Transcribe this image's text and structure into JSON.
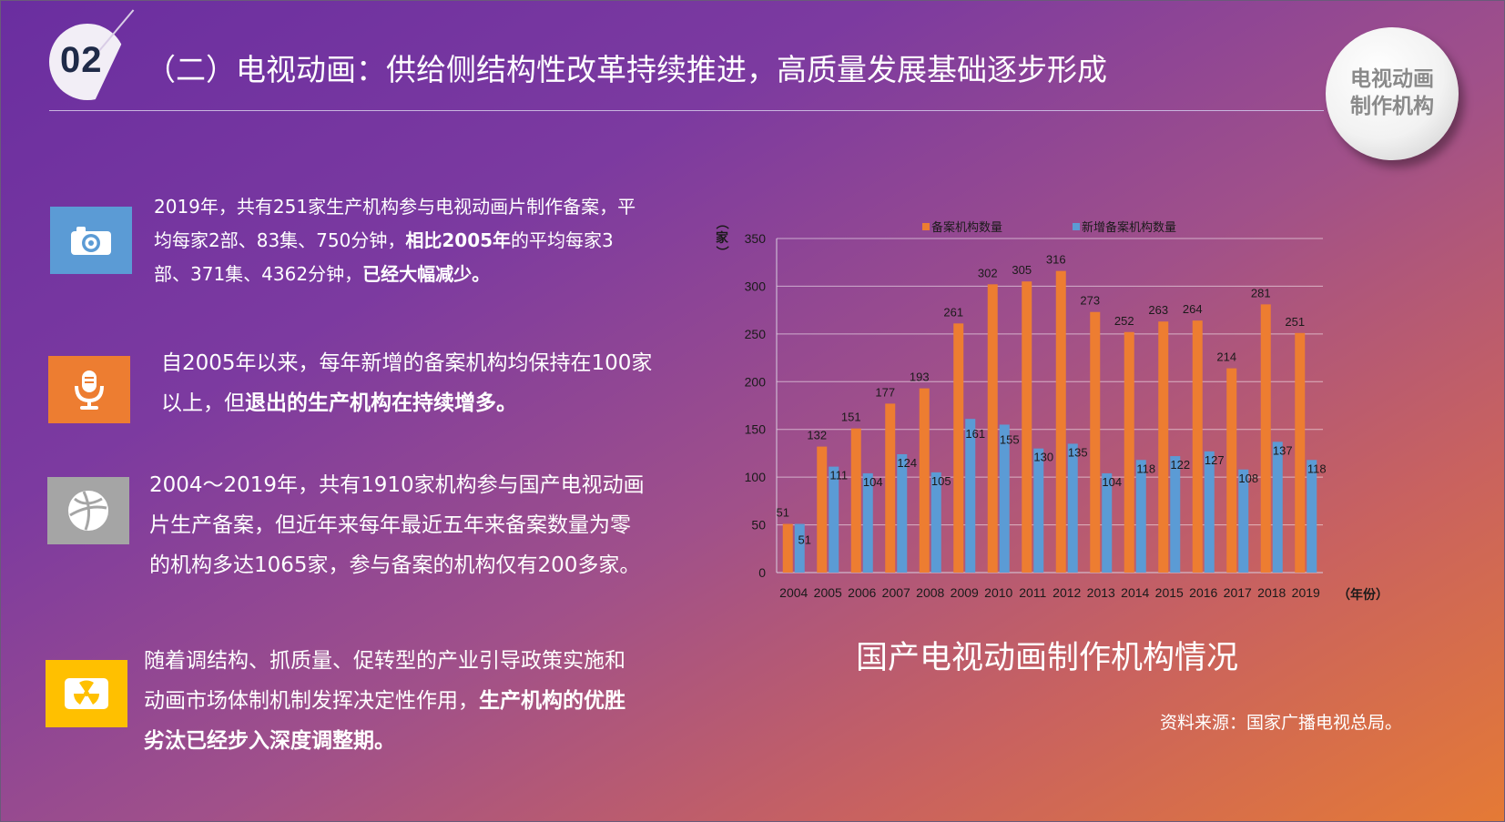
{
  "header": {
    "section_number": "02",
    "title": "（二）电视动画：供给侧结构性改革持续推进，高质量发展基础逐步形成",
    "corner_badge_line1": "电视动画",
    "corner_badge_line2": "制作机构"
  },
  "blocks": [
    {
      "icon": "camera-icon",
      "icon_color": "#5b9bd5",
      "seg1": "2019年，共有251家生产机构参与电视动画片制作备案，平均每家2部、83集、750分钟，",
      "seg2": "相比2005年",
      "seg3": "的平均每家3部、371集、4362分钟，",
      "seg4": "已经大幅减少。"
    },
    {
      "icon": "microphone-icon",
      "icon_color": "#ed7d31",
      "seg1": "自2005年以来，每年新增的备案机构均保持在100家以上，但",
      "seg2": "退出的生产机构在持续增多。"
    },
    {
      "icon": "basketball-icon",
      "icon_color": "#a5a5a5",
      "seg1": "2004～2019年，共有1910家机构参与国产电视动画片生产备案，但近年来每年最近五年来备案数量为零的机构多达1065家，参与备案的机构仅有200多家。"
    },
    {
      "icon": "radiation-icon",
      "icon_color": "#ffc000",
      "seg1": "随着调结构、抓质量、促转型的产业引导政策实施和动画市场体制机制发挥决定性作用，",
      "seg2": "生产机构的优胜劣汰已经步入深度调整期。"
    }
  ],
  "chart_title": "国产电视动画制作机构情况",
  "source": "资料来源：国家广播电视总局。",
  "chart_data": {
    "type": "bar",
    "categories": [
      "2004",
      "2005",
      "2006",
      "2007",
      "2008",
      "2009",
      "2010",
      "2011",
      "2012",
      "2013",
      "2014",
      "2015",
      "2016",
      "2017",
      "2018",
      "2019"
    ],
    "series": [
      {
        "name": "备案机构数量",
        "color": "#ed7d31",
        "values": [
          51,
          132,
          151,
          177,
          193,
          261,
          302,
          305,
          316,
          273,
          252,
          263,
          264,
          214,
          281,
          251
        ]
      },
      {
        "name": "新增备案机构数量",
        "color": "#5b9bd5",
        "values": [
          51,
          111,
          104,
          124,
          105,
          161,
          155,
          130,
          135,
          104,
          118,
          122,
          127,
          108,
          137,
          118
        ]
      }
    ],
    "ylabel": "（家）",
    "xlabel": "（年份）",
    "ylim": [
      0,
      350
    ],
    "yticks": [
      0,
      50,
      100,
      150,
      200,
      250,
      300,
      350
    ],
    "grid": true,
    "legend": "top"
  }
}
